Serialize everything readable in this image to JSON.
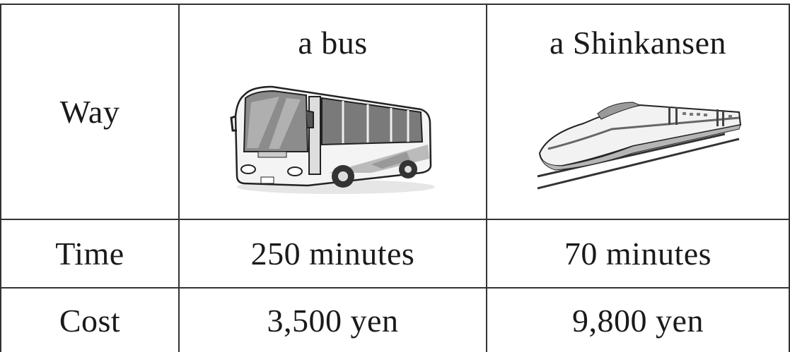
{
  "table": {
    "rows": [
      [
        "Way",
        "a bus",
        "a Shinkansen"
      ],
      [
        "Time",
        "250 minutes",
        "70 minutes"
      ],
      [
        "Cost",
        "3,500 yen",
        "9,800 yen"
      ]
    ]
  }
}
